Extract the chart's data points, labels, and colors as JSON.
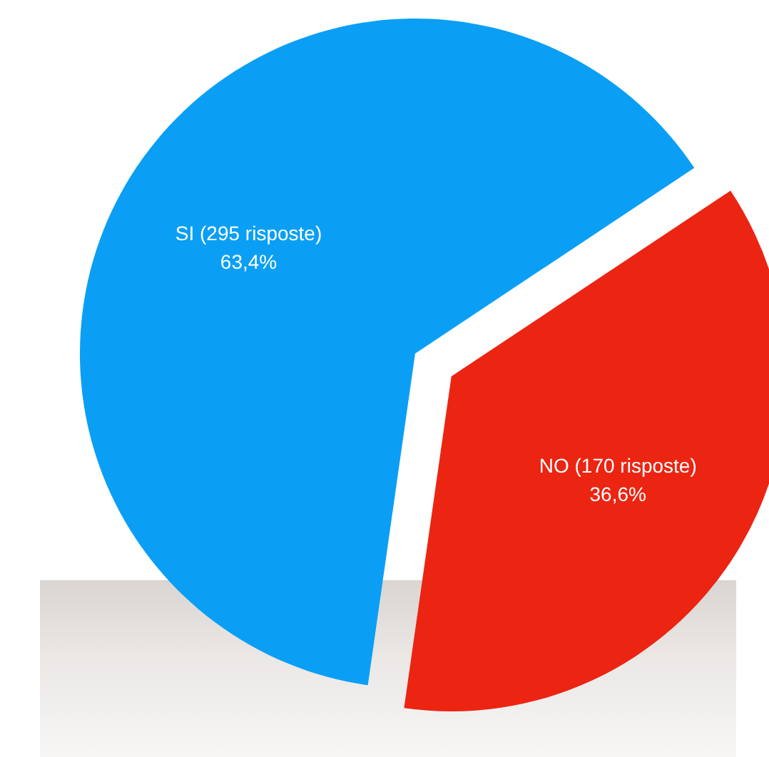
{
  "chart_data": {
    "type": "pie",
    "categories": [
      "SI (295 risposte)",
      "NO (170 risposte)"
    ],
    "values": [
      63.4,
      36.6
    ],
    "value_labels": [
      "63,4%",
      "36,6%"
    ],
    "colors": [
      "#0a9ff5",
      "#ec2412"
    ]
  }
}
